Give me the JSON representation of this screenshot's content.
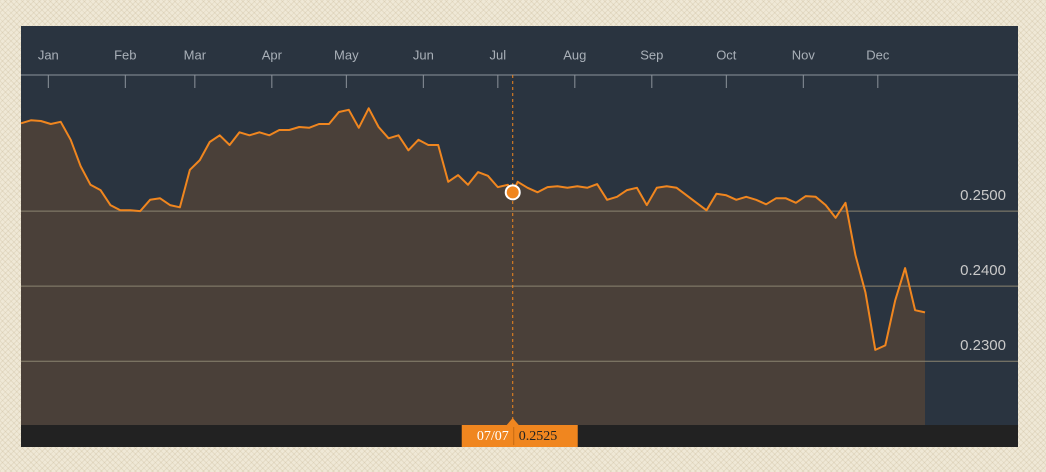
{
  "chart_data": {
    "type": "line",
    "color": "#f0861f",
    "area_color": "#4a4039",
    "x": [
      "12/21",
      "12/25",
      "12/29",
      "01/02",
      "01/06",
      "01/10",
      "01/14",
      "01/18",
      "01/22",
      "01/26",
      "01/30",
      "02/03",
      "02/07",
      "02/11",
      "02/15",
      "02/19",
      "02/23",
      "02/27",
      "03/03",
      "03/07",
      "03/11",
      "03/15",
      "03/19",
      "03/23",
      "03/27",
      "03/31",
      "04/04",
      "04/08",
      "04/12",
      "04/16",
      "04/20",
      "04/24",
      "04/28",
      "05/02",
      "05/06",
      "05/10",
      "05/14",
      "05/18",
      "05/22",
      "05/26",
      "05/30",
      "06/03",
      "06/07",
      "06/11",
      "06/15",
      "06/19",
      "06/23",
      "06/27",
      "07/01",
      "07/05",
      "07/07",
      "07/09",
      "07/13",
      "07/17",
      "07/21",
      "07/25",
      "07/29",
      "08/02",
      "08/06",
      "08/10",
      "08/14",
      "08/18",
      "08/22",
      "08/26",
      "08/30",
      "09/03",
      "09/07",
      "09/11",
      "09/15",
      "09/19",
      "09/23",
      "09/27",
      "10/01",
      "10/05",
      "10/09",
      "10/13",
      "10/17",
      "10/21",
      "10/25",
      "10/29",
      "11/02",
      "11/06",
      "11/10",
      "11/14",
      "11/18",
      "11/22",
      "11/26",
      "11/30",
      "12/04",
      "12/08",
      "12/12",
      "12/16",
      "12/20"
    ],
    "values": [
      0.2617,
      0.2621,
      0.262,
      0.2616,
      0.2619,
      0.2595,
      0.256,
      0.2535,
      0.2528,
      0.2508,
      0.2501,
      0.2501,
      0.25,
      0.2515,
      0.2517,
      0.2508,
      0.2505,
      0.2555,
      0.2568,
      0.2592,
      0.2601,
      0.2588,
      0.2605,
      0.2601,
      0.2605,
      0.2601,
      0.2608,
      0.2608,
      0.2612,
      0.2611,
      0.2616,
      0.2616,
      0.2632,
      0.2635,
      0.2611,
      0.2637,
      0.2612,
      0.2597,
      0.2601,
      0.2581,
      0.2595,
      0.2588,
      0.2588,
      0.2539,
      0.2548,
      0.2535,
      0.2552,
      0.2547,
      0.2532,
      0.2535,
      0.2525,
      0.2539,
      0.2531,
      0.2525,
      0.2532,
      0.2533,
      0.2531,
      0.2533,
      0.2531,
      0.2536,
      0.2515,
      0.2519,
      0.2528,
      0.2531,
      0.2508,
      0.2531,
      0.2533,
      0.2531,
      0.2521,
      0.2511,
      0.2501,
      0.2523,
      0.2521,
      0.2515,
      0.2519,
      0.2515,
      0.2509,
      0.2517,
      0.2517,
      0.2511,
      0.252,
      0.2519,
      0.2508,
      0.2491,
      0.2511,
      0.2441,
      0.2392,
      0.2315,
      0.2321,
      0.2381,
      0.2424,
      0.2368,
      0.2365
    ],
    "xlim": [
      "12/21",
      "12/20"
    ],
    "xticks": [
      {
        "value": "01/01",
        "label": "Jan"
      },
      {
        "value": "02/01",
        "label": "Feb"
      },
      {
        "value": "03/01",
        "label": "Mar"
      },
      {
        "value": "04/01",
        "label": "Apr"
      },
      {
        "value": "05/01",
        "label": "May"
      },
      {
        "value": "06/01",
        "label": "Jun"
      },
      {
        "value": "07/01",
        "label": "Jul"
      },
      {
        "value": "08/01",
        "label": "Aug"
      },
      {
        "value": "09/01",
        "label": "Sep"
      },
      {
        "value": "10/01",
        "label": "Oct"
      },
      {
        "value": "11/01",
        "label": "Nov"
      },
      {
        "value": "12/01",
        "label": "Dec"
      }
    ],
    "ylim": [
      0.2215,
      0.2664
    ],
    "yticks": [
      {
        "value": 0.23,
        "label": "0.2300"
      },
      {
        "value": 0.24,
        "label": "0.2400"
      },
      {
        "value": 0.25,
        "label": "0.2500"
      }
    ],
    "grid": true,
    "crosshair": {
      "x": "07/07",
      "value": 0.2525
    }
  }
}
